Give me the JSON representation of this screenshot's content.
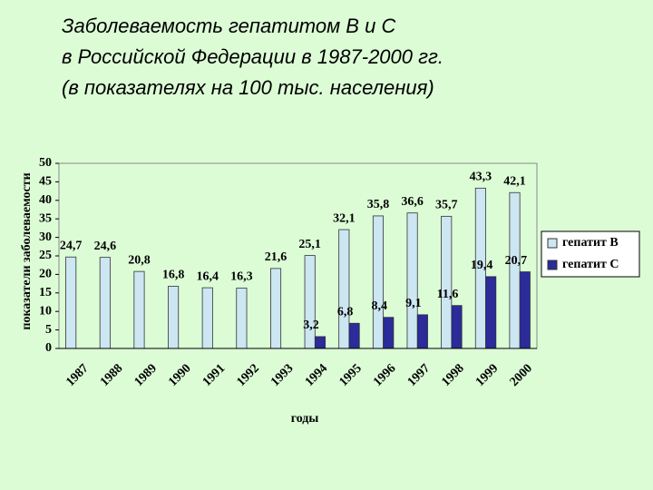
{
  "chart_data": {
    "type": "bar",
    "title": [
      "Заболеваемость гепатитом В и С",
      "в Российской Федерации в 1987-2000 гг.",
      "(в показателях  на 100  тыс. населения)"
    ],
    "x_label": "годы",
    "y_label": "показатели заболеваемости",
    "categories": [
      "1987",
      "1988",
      "1989",
      "1990",
      "1991",
      "1992",
      "1993",
      "1994",
      "1995",
      "1996",
      "1997",
      "1998",
      "1999",
      "2000"
    ],
    "series": [
      {
        "name": "гепатит B",
        "color": "#cce6f2",
        "values": [
          24.7,
          24.6,
          20.8,
          16.8,
          16.4,
          16.3,
          21.6,
          25.1,
          32.1,
          35.8,
          36.6,
          35.7,
          43.3,
          42.1
        ],
        "value_labels": [
          "24,7",
          "24,6",
          "20,8",
          "16,8",
          "16,4",
          "16,3",
          "21,6",
          "25,1",
          "32,1",
          "35,8",
          "36,6",
          "35,7",
          "43,3",
          "42,1"
        ]
      },
      {
        "name": "гепатит C",
        "color": "#2b2b99",
        "values": [
          null,
          null,
          null,
          null,
          null,
          null,
          null,
          3.2,
          6.8,
          8.4,
          9.1,
          11.6,
          19.4,
          20.7
        ],
        "value_labels": [
          null,
          null,
          null,
          null,
          null,
          null,
          null,
          "3,2",
          "6,8",
          "8,4",
          "9,1",
          "11,6",
          "19,4",
          "20,7"
        ]
      }
    ],
    "ylim": [
      0,
      50
    ],
    "yticks": [
      0,
      5,
      10,
      15,
      20,
      25,
      30,
      35,
      40,
      45,
      50
    ],
    "grid": false,
    "legend": "right"
  }
}
